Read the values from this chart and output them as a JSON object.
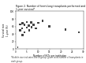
{
  "title": "Figure 2. Number of heart-lung transplants performed and 1-year survival*",
  "xlabel": "Number of HLTx per institution",
  "ylabel": "Survival rate\n1-year (%)",
  "xlim": [
    0,
    30
  ],
  "ylim": [
    0,
    100
  ],
  "xticks": [
    0,
    5,
    10,
    15,
    20,
    25,
    30
  ],
  "yticks": [
    0,
    20,
    40,
    60,
    80,
    100
  ],
  "footnote": "*Bubble size indicates size of group, given total number of transplants in each group.",
  "scatter_x": [
    1,
    2,
    2,
    3,
    3,
    3,
    4,
    4,
    5,
    5,
    6,
    6,
    7,
    7,
    8,
    9,
    10,
    12,
    15,
    22,
    28
  ],
  "scatter_y": [
    5,
    50,
    65,
    38,
    55,
    68,
    45,
    65,
    57,
    72,
    50,
    62,
    58,
    70,
    65,
    55,
    70,
    75,
    60,
    52,
    45
  ],
  "bubble_sizes": [
    2,
    3,
    3,
    4,
    3,
    4,
    3,
    4,
    4,
    3,
    3,
    4,
    3,
    4,
    4,
    4,
    3,
    3,
    3,
    3,
    2
  ],
  "dot_color": "#444444",
  "background_color": "#ffffff",
  "title_fontsize": 2.2,
  "label_fontsize": 2.0,
  "tick_fontsize": 2.0,
  "footnote_fontsize": 1.8
}
